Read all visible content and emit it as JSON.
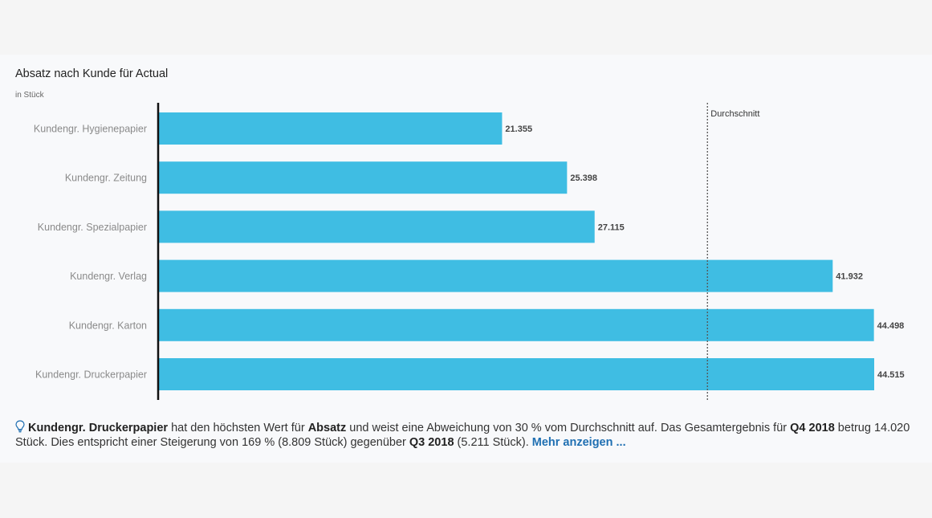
{
  "chart_data": {
    "type": "bar",
    "orientation": "horizontal",
    "title": "Absatz nach Kunde für Actual",
    "subtitle": "in Stück",
    "categories": [
      "Kundengr. Hygienepapier",
      "Kundengr. Zeitung",
      "Kundengr. Spezialpapier",
      "Kundengr. Verlag",
      "Kundengr. Karton",
      "Kundengr. Druckerpapier"
    ],
    "values": [
      21355,
      25398,
      27115,
      41932,
      44498,
      44515
    ],
    "value_labels": [
      "21.355",
      "25.398",
      "27.115",
      "41.932",
      "44.498",
      "44.515"
    ],
    "xlim": [
      0,
      44515
    ],
    "reference_line": {
      "label": "Durchschnitt",
      "value": 34136,
      "style": "dotted"
    },
    "bar_color": "#3fbde3",
    "grid": false
  },
  "insight": {
    "icon": "lightbulb-icon",
    "p1_bold": "Kundengr. Druckerpapier",
    "p2": " hat den höchsten Wert für ",
    "p3_bold": "Absatz",
    "p4": " und weist eine Abweichung von 30 % vom Durchschnitt auf. Das Gesamtergebnis für ",
    "p5_bold": "Q4 2018",
    "p6": " betrug 14.020 Stück. Dies entspricht einer Steigerung von 169 % (8.809 Stück) gegenüber ",
    "p7_bold": "Q3 2018",
    "p8": " (5.211 Stück). ",
    "link": "Mehr anzeigen ..."
  },
  "colors": {
    "link": "#1f6fb2",
    "bar": "#3fbde3"
  }
}
